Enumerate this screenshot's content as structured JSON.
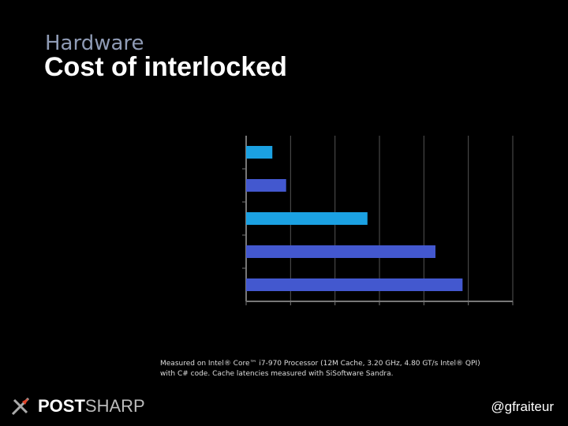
{
  "slide": {
    "kicker": "Hardware",
    "title": "Cost of interlocked",
    "footnote": [
      "Measured on Intel® Core™ i7-970 Processor (12M Cache, 3.20 GHz, 4.80 GT/s Intel® QPI)",
      "with C# code. Cache latencies measured with SiSoftware Sandra."
    ],
    "logo_bold": "POST",
    "logo_light": "SHARP",
    "handle": "@gfraiteur"
  },
  "chart_data": {
    "type": "hbar",
    "categories": [
      null,
      null,
      null,
      null,
      null
    ],
    "values": [
      0.59,
      0.9,
      2.73,
      4.26,
      4.87
    ],
    "colors": [
      "#1ba1e2",
      "#4358cf",
      "#1ba1e2",
      "#4358cf",
      "#4358cf"
    ],
    "xlim": [
      0,
      6
    ],
    "xticks": [
      0,
      1,
      2,
      3,
      4,
      5,
      6
    ],
    "grid": true
  }
}
